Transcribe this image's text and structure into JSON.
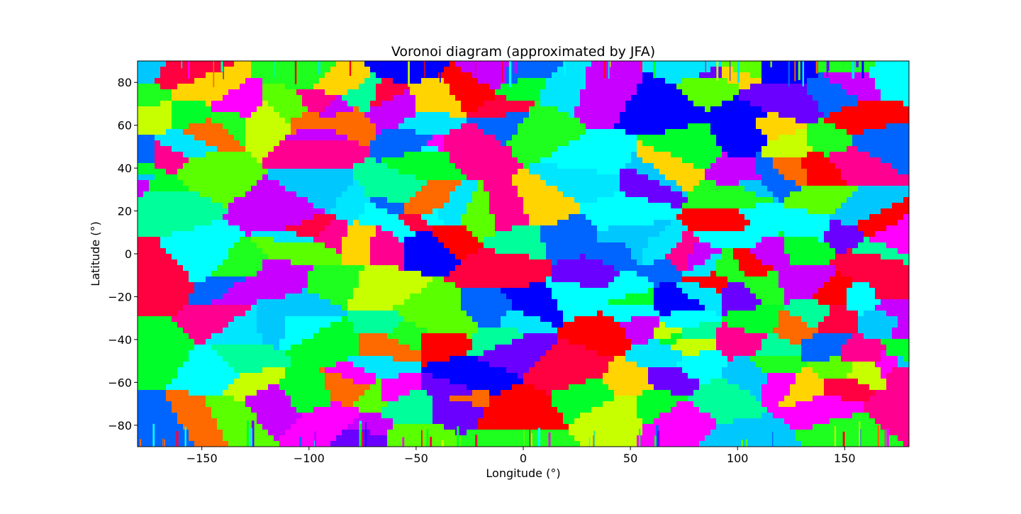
{
  "chart_data": {
    "type": "heatmap",
    "title": "Voronoi diagram (approximated by JFA)",
    "xlabel": "Longitude (°)",
    "ylabel": "Latitude (°)",
    "xlim": [
      -180,
      180
    ],
    "ylim": [
      -90,
      90
    ],
    "xticks": [
      -150,
      -100,
      -50,
      0,
      50,
      100,
      150
    ],
    "xtick_labels": [
      "−150",
      "−100",
      "−50",
      "0",
      "50",
      "100",
      "150"
    ],
    "yticks": [
      -80,
      -60,
      -40,
      -20,
      0,
      20,
      40,
      60,
      80
    ],
    "ytick_labels": [
      "−80",
      "−60",
      "−40",
      "−20",
      "0",
      "20",
      "40",
      "60",
      "80"
    ],
    "grid": false,
    "colormap": "hsv",
    "palette": [
      "#ff0000",
      "#ff6a00",
      "#ffd400",
      "#c8ff00",
      "#5aff00",
      "#00ff2a",
      "#00ff9a",
      "#00ffff",
      "#00c8ff",
      "#0064ff",
      "#0000ff",
      "#6a00ff",
      "#c800ff",
      "#ff00ff",
      "#ff0090",
      "#ff0040",
      "#00e6ff",
      "#1fff1f"
    ]
  }
}
